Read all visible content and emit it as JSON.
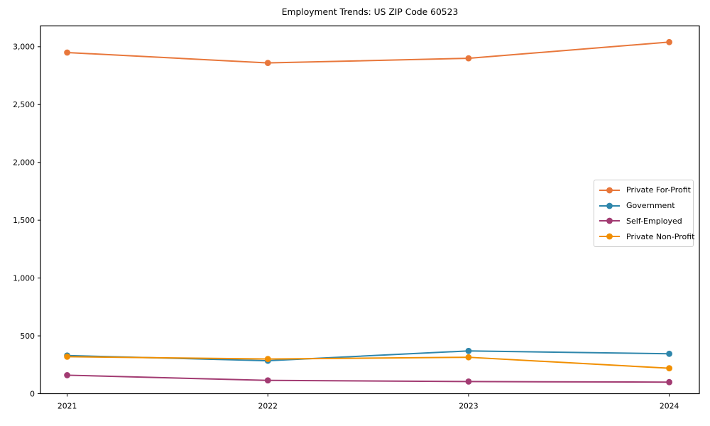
{
  "chart_data": {
    "type": "line",
    "title": "Employment Trends: US ZIP Code 60523",
    "x": [
      2021,
      2022,
      2023,
      2024
    ],
    "x_tick_labels": [
      "2021",
      "2022",
      "2023",
      "2024"
    ],
    "y_ticks": [
      0,
      500,
      1000,
      1500,
      2000,
      2500,
      3000
    ],
    "y_tick_labels": [
      "0",
      "500",
      "1,000",
      "1,500",
      "2,000",
      "2,500",
      "3,000"
    ],
    "xlabel": "",
    "ylabel": "",
    "ylim": [
      0,
      3180
    ],
    "grid": false,
    "legend_position": "center-right",
    "marker": "circle",
    "series": [
      {
        "name": "Private For-Profit",
        "color": "#E8773B",
        "values": [
          2950,
          2860,
          2900,
          3040
        ]
      },
      {
        "name": "Government",
        "color": "#2E86AB",
        "values": [
          330,
          285,
          370,
          345
        ]
      },
      {
        "name": "Self-Employed",
        "color": "#A23B72",
        "values": [
          160,
          115,
          105,
          100
        ]
      },
      {
        "name": "Private Non-Profit",
        "color": "#F18F01",
        "values": [
          320,
          300,
          315,
          220
        ]
      }
    ]
  }
}
